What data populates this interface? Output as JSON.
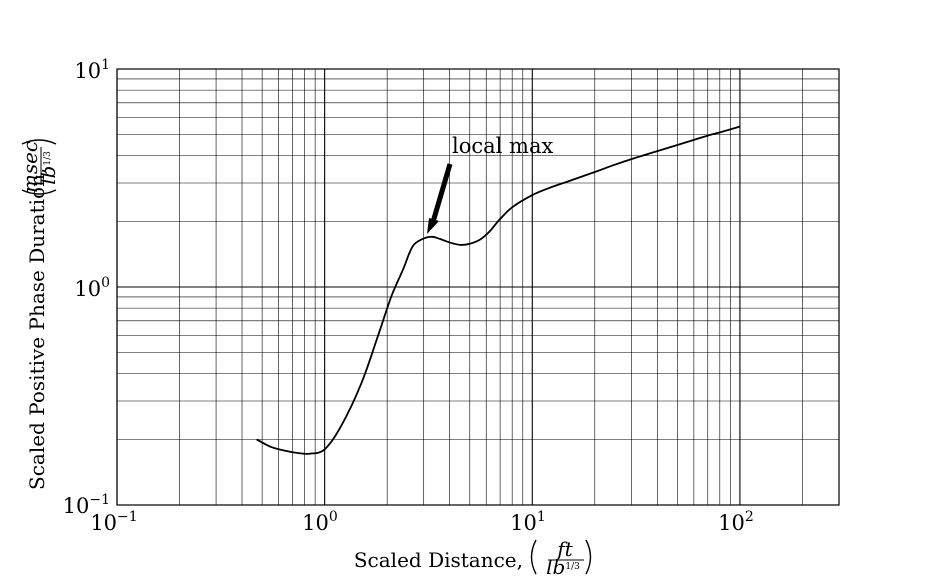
{
  "chart_data": {
    "type": "line",
    "title": "",
    "xlabel": "Scaled Distance, (ft / lb^1/3)",
    "ylabel": "Scaled Positive Phase Duration, (msec / lb^1/3)",
    "xlabel_text": "Scaled Distance,",
    "xlabel_unit_num": "ft",
    "xlabel_unit_den": "lb",
    "xlabel_unit_den_exp": "1/3",
    "ylabel_text": "Scaled Positive Phase Duration,",
    "ylabel_unit_num": "msec",
    "ylabel_unit_den": "lb",
    "ylabel_unit_den_exp": "1/3",
    "xscale": "log",
    "yscale": "log",
    "xlim": [
      0.1,
      300
    ],
    "ylim": [
      0.1,
      10
    ],
    "grid": true,
    "x_ticks": [
      {
        "base": "10",
        "exp": "−1"
      },
      {
        "base": "10",
        "exp": "0"
      },
      {
        "base": "10",
        "exp": "1"
      },
      {
        "base": "10",
        "exp": "2"
      }
    ],
    "y_ticks": [
      {
        "base": "10",
        "exp": "−1"
      },
      {
        "base": "10",
        "exp": "0"
      },
      {
        "base": "10",
        "exp": "1"
      }
    ],
    "series": [
      {
        "x": [
          0.47,
          0.55,
          0.65,
          0.75,
          0.85,
          1.0,
          1.2,
          1.5,
          1.8,
          2.1,
          2.4,
          2.55,
          2.7,
          3.0,
          3.3,
          3.6,
          4.0,
          4.5,
          5.0,
          5.6,
          6.2,
          6.8,
          7.0,
          8.0,
          10.0,
          12.0,
          15.0,
          20.0,
          25.0,
          30.0,
          40.0,
          50.0,
          60.0,
          70.0,
          80.0,
          100.0
        ],
        "y": [
          0.2,
          0.185,
          0.177,
          0.173,
          0.172,
          0.18,
          0.23,
          0.36,
          0.59,
          0.91,
          1.22,
          1.42,
          1.57,
          1.67,
          1.7,
          1.66,
          1.6,
          1.56,
          1.58,
          1.65,
          1.79,
          1.99,
          2.05,
          2.32,
          2.64,
          2.84,
          3.06,
          3.37,
          3.64,
          3.86,
          4.2,
          4.48,
          4.73,
          4.95,
          5.12,
          5.45
        ]
      }
    ],
    "annotations": [
      {
        "text": "local max",
        "x": 3.3,
        "y": 1.7
      }
    ]
  }
}
